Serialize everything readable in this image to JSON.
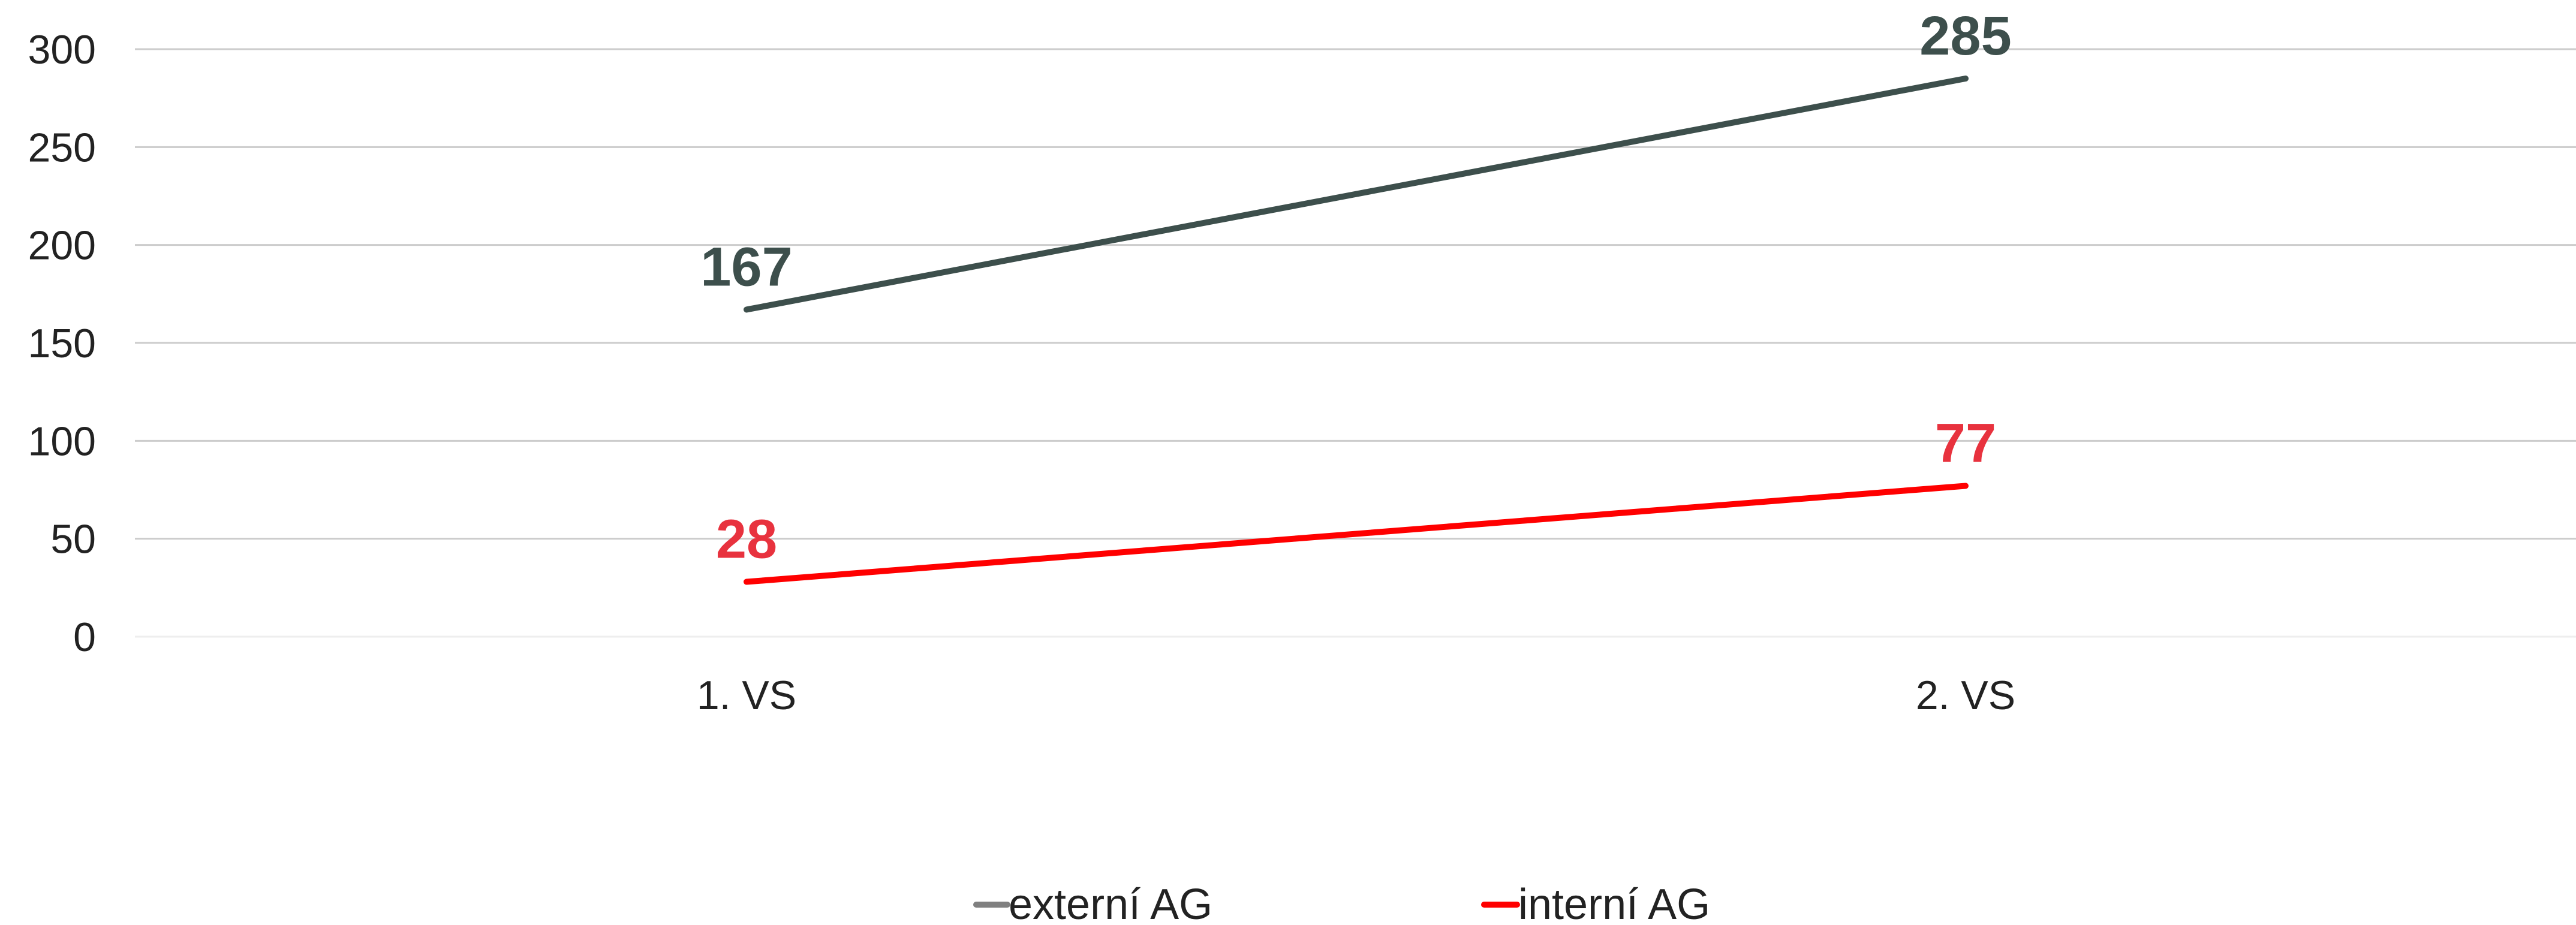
{
  "chart_data": {
    "type": "line",
    "categories": [
      "1. VS",
      "2. VS"
    ],
    "series": [
      {
        "name": "externí AG",
        "values": [
          167,
          285
        ],
        "color": "#3d4f4c",
        "label_color": "#3d4f4c",
        "legend_color": "#808080"
      },
      {
        "name": "interní AG",
        "values": [
          28,
          77
        ],
        "color": "#ff0000",
        "label_color": "#e8323e",
        "legend_color": "#ff0000"
      }
    ],
    "yticks": [
      0,
      50,
      100,
      150,
      200,
      250,
      300
    ],
    "ylim": [
      0,
      300
    ],
    "grid": true,
    "grid_color": "#cccccc",
    "legend_position": "bottom",
    "title": "",
    "xlabel": "",
    "ylabel": ""
  }
}
